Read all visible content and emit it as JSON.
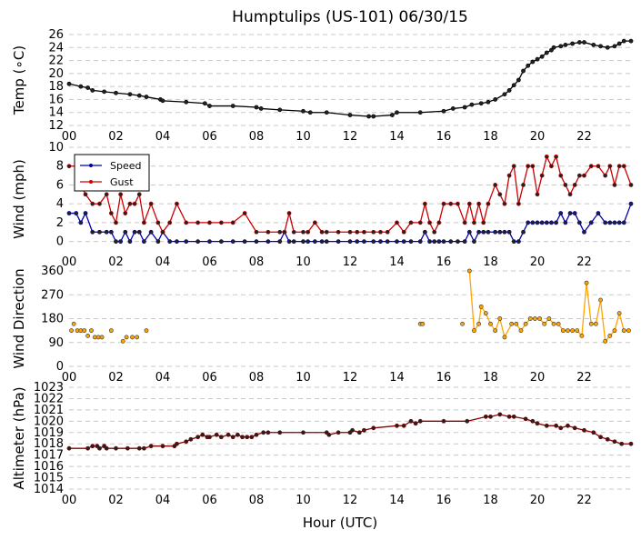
{
  "chart_data": {
    "title": "Humptulips (US-101) 06/30/15",
    "xlabel": "Hour (UTC)",
    "x_ticks": [
      "00",
      "02",
      "04",
      "06",
      "08",
      "10",
      "12",
      "14",
      "16",
      "18",
      "20",
      "22"
    ],
    "x_range": [
      0,
      24
    ],
    "grid": "horizontal dashed",
    "panels": [
      {
        "id": "temp",
        "type": "line",
        "ylabel": "Temp (∘C)",
        "ylim": [
          12,
          26
        ],
        "yticks": [
          12,
          14,
          16,
          18,
          20,
          22,
          24,
          26
        ],
        "color": "#000000",
        "series": [
          {
            "x": [
              0,
              0.5,
              0.8,
              1.0,
              1.5,
              2.0,
              2.6,
              3.0,
              3.3,
              3.9,
              4.0,
              5.0,
              5.8,
              6.0,
              7.0,
              8.0,
              8.2,
              9.0,
              10.0,
              10.3,
              11.0,
              12.0,
              12.8,
              13.0,
              13.8,
              14.0,
              15.0,
              16.0,
              16.4,
              16.9,
              17.2,
              17.6,
              17.9,
              18.2,
              18.6,
              18.8,
              19.0,
              19.2,
              19.4,
              19.6,
              19.8,
              20.0,
              20.2,
              20.4,
              20.6,
              20.7,
              21.0,
              21.2,
              21.5,
              21.8,
              22.0,
              22.4,
              22.7,
              23.0,
              23.3,
              23.5,
              23.7,
              24.0
            ],
            "y": [
              18.4,
              18.0,
              17.8,
              17.4,
              17.2,
              17.0,
              16.8,
              16.6,
              16.4,
              16.0,
              15.8,
              15.6,
              15.4,
              15.0,
              15.0,
              14.8,
              14.6,
              14.4,
              14.2,
              14.0,
              14.0,
              13.6,
              13.4,
              13.4,
              13.6,
              14.0,
              14.0,
              14.2,
              14.6,
              14.8,
              15.2,
              15.4,
              15.6,
              16.0,
              16.8,
              17.4,
              18.2,
              19.0,
              20.4,
              21.2,
              21.8,
              22.2,
              22.6,
              23.2,
              23.6,
              24.0,
              24.2,
              24.4,
              24.6,
              24.8,
              24.8,
              24.4,
              24.2,
              24.0,
              24.2,
              24.6,
              25.0,
              25.0
            ]
          }
        ]
      },
      {
        "id": "wind",
        "type": "line",
        "ylabel": "Wind (mph)",
        "ylim": [
          -1,
          10
        ],
        "yticks": [
          0,
          2,
          4,
          6,
          8,
          10
        ],
        "legend": "top-left",
        "series": [
          {
            "name": "Speed",
            "color": "#0000aa",
            "x": [
              0,
              0.3,
              0.5,
              0.7,
              1.0,
              1.3,
              1.6,
              1.8,
              2.0,
              2.2,
              2.4,
              2.6,
              2.8,
              3.0,
              3.2,
              3.5,
              3.8,
              4.0,
              4.3,
              4.6,
              5.0,
              5.5,
              6.0,
              6.5,
              7.0,
              7.5,
              8.0,
              8.5,
              9.0,
              9.2,
              9.4,
              9.6,
              10.0,
              10.2,
              10.5,
              10.8,
              11.0,
              11.5,
              12.0,
              12.3,
              12.6,
              13.0,
              13.3,
              13.6,
              14.0,
              14.3,
              14.6,
              15.0,
              15.2,
              15.4,
              15.6,
              15.8,
              16.0,
              16.3,
              16.6,
              16.9,
              17.1,
              17.3,
              17.5,
              17.7,
              17.9,
              18.2,
              18.4,
              18.6,
              18.8,
              19.0,
              19.2,
              19.4,
              19.6,
              19.8,
              20.0,
              20.2,
              20.4,
              20.6,
              20.8,
              21.0,
              21.2,
              21.4,
              21.6,
              21.8,
              22.0,
              22.3,
              22.6,
              22.9,
              23.1,
              23.3,
              23.5,
              23.7,
              24.0
            ],
            "y": [
              3,
              3,
              2,
              3,
              1,
              1,
              1,
              1,
              0,
              0,
              1,
              0,
              1,
              1,
              0,
              1,
              0,
              1,
              0,
              0,
              0,
              0,
              0,
              0,
              0,
              0,
              0,
              0,
              0,
              1,
              0,
              0,
              0,
              0,
              0,
              0,
              0,
              0,
              0,
              0,
              0,
              0,
              0,
              0,
              0,
              0,
              0,
              0,
              1,
              0,
              0,
              0,
              0,
              0,
              0,
              0,
              1,
              0,
              1,
              1,
              1,
              1,
              1,
              1,
              1,
              0,
              0,
              1,
              2,
              2,
              2,
              2,
              2,
              2,
              2,
              3,
              2,
              3,
              3,
              2,
              1,
              2,
              3,
              2,
              2,
              2,
              2,
              2,
              4
            ]
          },
          {
            "name": "Gust",
            "color": "#cc0000",
            "x": [
              0,
              0.3,
              0.5,
              0.7,
              1.0,
              1.3,
              1.6,
              1.8,
              2.0,
              2.2,
              2.4,
              2.6,
              2.8,
              3.0,
              3.2,
              3.5,
              3.8,
              4.0,
              4.3,
              4.6,
              5.0,
              5.5,
              6.0,
              6.5,
              7.0,
              7.5,
              8.0,
              8.5,
              9.0,
              9.2,
              9.4,
              9.6,
              10.0,
              10.2,
              10.5,
              10.8,
              11.0,
              11.5,
              12.0,
              12.3,
              12.6,
              13.0,
              13.3,
              13.6,
              14.0,
              14.3,
              14.6,
              15.0,
              15.2,
              15.4,
              15.6,
              15.8,
              16.0,
              16.3,
              16.6,
              16.9,
              17.1,
              17.3,
              17.5,
              17.7,
              17.9,
              18.2,
              18.4,
              18.6,
              18.8,
              19.0,
              19.2,
              19.4,
              19.6,
              19.8,
              20.0,
              20.2,
              20.4,
              20.6,
              20.8,
              21.0,
              21.2,
              21.4,
              21.6,
              21.8,
              22.0,
              22.3,
              22.6,
              22.9,
              23.1,
              23.3,
              23.5,
              23.7,
              24.0
            ],
            "y": [
              8,
              8,
              6,
              5,
              4,
              4,
              5,
              3,
              2,
              5,
              3,
              4,
              4,
              5,
              2,
              4,
              2,
              1,
              2,
              4,
              2,
              2,
              2,
              2,
              2,
              3,
              1,
              1,
              1,
              1,
              3,
              1,
              1,
              1,
              2,
              1,
              1,
              1,
              1,
              1,
              1,
              1,
              1,
              1,
              2,
              1,
              2,
              2,
              4,
              2,
              1,
              2,
              4,
              4,
              4,
              2,
              4,
              2,
              4,
              2,
              4,
              6,
              5,
              4,
              7,
              8,
              4,
              6,
              8,
              8,
              5,
              7,
              9,
              8,
              9,
              7,
              6,
              5,
              6,
              7,
              7,
              8,
              8,
              7,
              8,
              6,
              8,
              8,
              6
            ]
          }
        ]
      },
      {
        "id": "direction",
        "type": "scatter",
        "ylabel": "Wind Direction",
        "ylim": [
          0,
          360
        ],
        "yticks": [
          0,
          90,
          180,
          270,
          360
        ],
        "color": "#ffa500",
        "series": [
          {
            "x": [
              0.1,
              0.2,
              0.35,
              0.5,
              0.65,
              0.8,
              0.95,
              1.1,
              1.25,
              1.4,
              1.8,
              2.3,
              2.45,
              2.7,
              2.9,
              3.3,
              15.0,
              15.1,
              16.8,
              17.1,
              17.3,
              17.5,
              17.6,
              17.8,
              18.0,
              18.2,
              18.4,
              18.6,
              18.9,
              19.1,
              19.3,
              19.5,
              19.7,
              19.9,
              20.1,
              20.3,
              20.5,
              20.7,
              20.9,
              21.1,
              21.3,
              21.5,
              21.7,
              21.9,
              22.1,
              22.3,
              22.5,
              22.7,
              22.9,
              23.1,
              23.3,
              23.5,
              23.7,
              23.9
            ],
            "y": [
              135,
              160,
              135,
              135,
              135,
              115,
              135,
              110,
              110,
              110,
              135,
              95,
              110,
              110,
              110,
              135,
              160,
              160,
              160,
              360,
              135,
              160,
              225,
              200,
              160,
              135,
              180,
              110,
              160,
              160,
              135,
              160,
              180,
              180,
              180,
              160,
              180,
              160,
              160,
              135,
              135,
              135,
              135,
              115,
              315,
              160,
              160,
              250,
              95,
              115,
              135,
              200,
              135,
              135
            ]
          }
        ]
      },
      {
        "id": "altimeter",
        "type": "line",
        "ylabel": "Altimeter (hPa)",
        "ylim": [
          1014,
          1023
        ],
        "yticks": [
          1014,
          1015,
          1016,
          1017,
          1018,
          1019,
          1020,
          1021,
          1022,
          1023
        ],
        "color": "#8b0000",
        "series": [
          {
            "x": [
              0,
              0.8,
              1.0,
              1.2,
              1.3,
              1.5,
              1.6,
              2.0,
              2.5,
              3.0,
              3.2,
              3.5,
              4.0,
              4.5,
              4.6,
              5.0,
              5.2,
              5.5,
              5.7,
              5.9,
              6.0,
              6.3,
              6.5,
              6.8,
              7.0,
              7.2,
              7.4,
              7.6,
              7.8,
              8.0,
              8.3,
              8.5,
              9.0,
              10.0,
              11.0,
              11.1,
              11.5,
              12.0,
              12.1,
              12.4,
              12.6,
              13.0,
              14.0,
              14.3,
              14.6,
              14.8,
              15.0,
              16.0,
              17.0,
              17.8,
              18.0,
              18.4,
              18.8,
              19.0,
              19.5,
              19.8,
              20.0,
              20.4,
              20.8,
              21.0,
              21.3,
              21.6,
              22.0,
              22.4,
              22.7,
              23.0,
              23.3,
              23.6,
              24.0
            ],
            "y": [
              1017.6,
              1017.6,
              1017.8,
              1017.8,
              1017.6,
              1017.8,
              1017.6,
              1017.6,
              1017.6,
              1017.6,
              1017.6,
              1017.8,
              1017.8,
              1017.8,
              1018.0,
              1018.2,
              1018.4,
              1018.6,
              1018.8,
              1018.6,
              1018.6,
              1018.8,
              1018.6,
              1018.8,
              1018.6,
              1018.8,
              1018.6,
              1018.6,
              1018.6,
              1018.8,
              1019.0,
              1019.0,
              1019.0,
              1019.0,
              1019.0,
              1018.8,
              1019.0,
              1019.0,
              1019.2,
              1019.0,
              1019.2,
              1019.4,
              1019.6,
              1019.6,
              1020.0,
              1019.8,
              1020.0,
              1020.0,
              1020.0,
              1020.4,
              1020.4,
              1020.6,
              1020.4,
              1020.4,
              1020.2,
              1020.0,
              1019.8,
              1019.6,
              1019.6,
              1019.4,
              1019.6,
              1019.4,
              1019.2,
              1019.0,
              1018.6,
              1018.4,
              1018.2,
              1018.0,
              1018.0
            ]
          }
        ]
      }
    ]
  }
}
